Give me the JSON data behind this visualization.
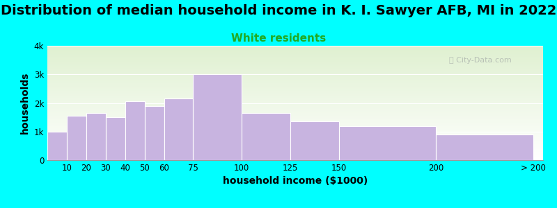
{
  "title": "Distribution of median household income in K. I. Sawyer AFB, MI in 2022",
  "subtitle": "White residents",
  "xlabel": "household income ($1000)",
  "ylabel": "households",
  "background_color": "#00FFFF",
  "plot_bg_top": "#dff0d0",
  "plot_bg_bottom": "#ffffff",
  "bar_color": "#c8b4e0",
  "bar_edge_color": "#ffffff",
  "bin_edges": [
    0,
    10,
    20,
    30,
    40,
    50,
    60,
    75,
    100,
    125,
    150,
    200,
    250
  ],
  "bin_labels": [
    "10",
    "20",
    "30",
    "40",
    "50",
    "60",
    "75",
    "100",
    "125",
    "150",
    "200",
    "> 200"
  ],
  "values": [
    1000,
    1550,
    1650,
    1500,
    2050,
    1900,
    2150,
    3000,
    1650,
    1350,
    1200,
    900
  ],
  "ylim": [
    0,
    4000
  ],
  "yticks": [
    0,
    1000,
    2000,
    3000,
    4000
  ],
  "ytick_labels": [
    "0",
    "1k",
    "2k",
    "3k",
    "4k"
  ],
  "title_fontsize": 14,
  "subtitle_fontsize": 11,
  "subtitle_color": "#22aa22",
  "axis_label_fontsize": 10,
  "tick_fontsize": 8.5,
  "watermark_text": "City-Data.com"
}
